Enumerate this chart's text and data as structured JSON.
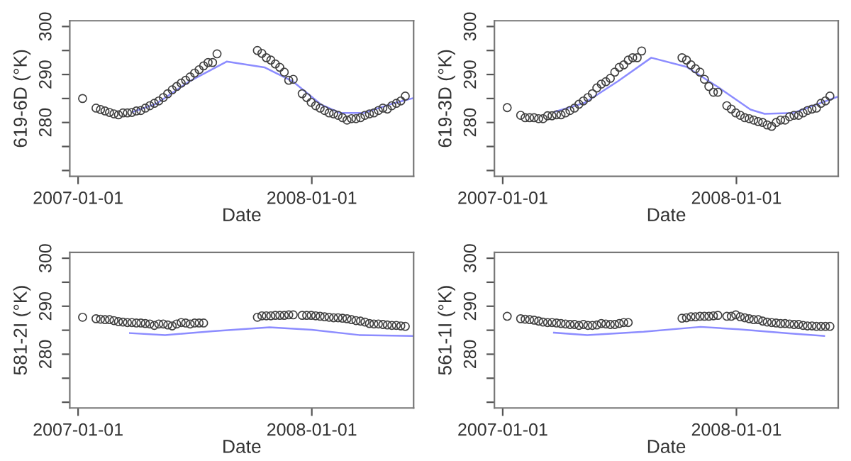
{
  "chart_data": [
    {
      "type": "scatter",
      "xlabel": "Date",
      "ylabel": "619-6D (°K)",
      "xlim": [
        "2006-12-19",
        "2008-06-08"
      ],
      "ylim": [
        268.8,
        301.2
      ],
      "xticks": [
        "2007-01-01",
        "2008-01-01"
      ],
      "yticks": [
        {
          "value": 270,
          "label": null
        },
        {
          "value": 275,
          "label": null
        },
        280,
        {
          "value": 285,
          "label": null
        },
        290,
        {
          "value": 295,
          "label": null
        },
        300
      ],
      "grid": false,
      "legend": false,
      "series": [
        {
          "type": "scatter",
          "marker": "circle",
          "color": "#404040",
          "x": [
            "2007-01-08",
            "2007-01-29",
            "2007-02-05",
            "2007-02-12",
            "2007-02-19",
            "2007-02-26",
            "2007-03-05",
            "2007-03-12",
            "2007-03-19",
            "2007-03-26",
            "2007-04-02",
            "2007-04-09",
            "2007-04-16",
            "2007-04-23",
            "2007-04-30",
            "2007-05-07",
            "2007-05-14",
            "2007-05-21",
            "2007-05-28",
            "2007-06-04",
            "2007-06-11",
            "2007-06-18",
            "2007-06-25",
            "2007-07-02",
            "2007-07-09",
            "2007-07-16",
            "2007-07-23",
            "2007-07-30",
            "2007-08-06",
            "2007-10-08",
            "2007-10-15",
            "2007-10-22",
            "2007-10-29",
            "2007-11-05",
            "2007-11-12",
            "2007-11-19",
            "2007-11-26",
            "2007-12-03",
            "2007-12-17",
            "2007-12-24",
            "2007-12-31",
            "2008-01-07",
            "2008-01-14",
            "2008-01-21",
            "2008-01-28",
            "2008-02-04",
            "2008-02-11",
            "2008-02-18",
            "2008-02-25",
            "2008-03-03",
            "2008-03-10",
            "2008-03-17",
            "2008-03-24",
            "2008-03-31",
            "2008-04-07",
            "2008-04-14",
            "2008-04-21",
            "2008-04-28",
            "2008-05-05",
            "2008-05-12",
            "2008-05-19",
            "2008-05-26"
          ],
          "values": [
            285.0,
            283.0,
            282.7,
            282.4,
            282.1,
            281.8,
            281.6,
            282.0,
            282.0,
            282.1,
            282.4,
            282.5,
            283.0,
            283.5,
            284.0,
            284.5,
            285.2,
            286.0,
            286.8,
            287.5,
            288.2,
            288.8,
            289.5,
            290.3,
            291.0,
            291.8,
            292.5,
            292.5,
            294.3,
            295.0,
            294.4,
            293.5,
            293.0,
            292.2,
            291.5,
            290.5,
            288.8,
            289.0,
            286.0,
            285.2,
            284.2,
            283.5,
            283.0,
            282.5,
            282.0,
            281.8,
            281.5,
            281.0,
            280.5,
            280.8,
            280.8,
            281.0,
            281.5,
            281.8,
            282.0,
            282.5,
            283.0,
            282.8,
            283.5,
            284.0,
            284.5,
            285.5
          ]
        },
        {
          "type": "line",
          "marker": "none",
          "color": "#8c8cff",
          "x": [
            "2007-03-27",
            "2007-05-03",
            "2007-06-23",
            "2007-08-21",
            "2007-10-19",
            "2007-12-03",
            "2008-01-16",
            "2008-02-14",
            "2008-03-22",
            "2008-05-05",
            "2008-06-08"
          ],
          "values": [
            282.2,
            283.9,
            288.5,
            292.7,
            291.5,
            288.5,
            283.7,
            282.0,
            282.0,
            283.9,
            285.1
          ]
        }
      ]
    },
    {
      "type": "scatter",
      "xlabel": "Date",
      "ylabel": "619-3D (°K)",
      "xlim": [
        "2006-12-19",
        "2008-06-08"
      ],
      "ylim": [
        268.8,
        301.2
      ],
      "xticks": [
        "2007-01-01",
        "2008-01-01"
      ],
      "yticks": [
        {
          "value": 270,
          "label": null
        },
        {
          "value": 275,
          "label": null
        },
        280,
        {
          "value": 285,
          "label": null
        },
        290,
        {
          "value": 295,
          "label": null
        },
        300
      ],
      "grid": false,
      "legend": false,
      "series": [
        {
          "type": "scatter",
          "marker": "circle",
          "color": "#404040",
          "x": [
            "2007-01-08",
            "2007-01-29",
            "2007-02-05",
            "2007-02-12",
            "2007-02-19",
            "2007-02-26",
            "2007-03-05",
            "2007-03-12",
            "2007-03-19",
            "2007-03-26",
            "2007-04-02",
            "2007-04-09",
            "2007-04-16",
            "2007-04-23",
            "2007-04-30",
            "2007-05-07",
            "2007-05-14",
            "2007-05-21",
            "2007-05-28",
            "2007-06-04",
            "2007-06-11",
            "2007-06-18",
            "2007-06-25",
            "2007-07-02",
            "2007-07-09",
            "2007-07-16",
            "2007-07-23",
            "2007-07-30",
            "2007-08-06",
            "2007-10-08",
            "2007-10-15",
            "2007-10-22",
            "2007-10-29",
            "2007-11-05",
            "2007-11-12",
            "2007-11-19",
            "2007-11-26",
            "2007-12-03",
            "2007-12-17",
            "2007-12-24",
            "2007-12-31",
            "2008-01-07",
            "2008-01-14",
            "2008-01-21",
            "2008-01-28",
            "2008-02-04",
            "2008-02-11",
            "2008-02-18",
            "2008-02-25",
            "2008-03-03",
            "2008-03-10",
            "2008-03-17",
            "2008-03-24",
            "2008-03-31",
            "2008-04-07",
            "2008-04-14",
            "2008-04-21",
            "2008-04-28",
            "2008-05-05",
            "2008-05-12",
            "2008-05-19",
            "2008-05-26"
          ],
          "values": [
            283.1,
            281.5,
            281.0,
            281.0,
            281.0,
            280.8,
            280.8,
            281.4,
            281.4,
            281.6,
            281.6,
            282.0,
            282.5,
            283.0,
            283.8,
            284.5,
            285.2,
            286.0,
            287.2,
            288.0,
            288.5,
            289.2,
            290.5,
            291.5,
            292.0,
            293.0,
            293.5,
            293.5,
            294.9,
            293.5,
            293.0,
            292.0,
            291.2,
            290.5,
            289.0,
            287.5,
            286.3,
            286.3,
            283.5,
            282.8,
            282.0,
            281.5,
            281.0,
            280.8,
            280.5,
            280.2,
            280.0,
            279.5,
            279.2,
            280.0,
            280.5,
            280.5,
            281.2,
            281.5,
            281.5,
            282.0,
            282.5,
            282.8,
            283.0,
            284.0,
            284.5,
            285.5
          ]
        },
        {
          "type": "line",
          "marker": "none",
          "color": "#8c8cff",
          "x": [
            "2007-03-22",
            "2007-05-09",
            "2007-06-30",
            "2007-08-21",
            "2007-10-15",
            "2007-12-02",
            "2008-01-23",
            "2008-02-14",
            "2008-03-30",
            "2008-06-08"
          ],
          "values": [
            282.2,
            284.1,
            288.6,
            293.5,
            291.6,
            287.5,
            282.7,
            281.8,
            282.0,
            285.4
          ]
        }
      ]
    },
    {
      "type": "scatter",
      "xlabel": "Date",
      "ylabel": "581-2I (°K)",
      "xlim": [
        "2006-12-19",
        "2008-06-08"
      ],
      "ylim": [
        268.8,
        301.2
      ],
      "xticks": [
        "2007-01-01",
        "2008-01-01"
      ],
      "yticks": [
        {
          "value": 270,
          "label": null
        },
        {
          "value": 275,
          "label": null
        },
        280,
        {
          "value": 285,
          "label": null
        },
        290,
        {
          "value": 295,
          "label": null
        },
        300
      ],
      "grid": false,
      "legend": false,
      "series": [
        {
          "type": "scatter",
          "marker": "circle",
          "color": "#404040",
          "x": [
            "2007-01-08",
            "2007-01-29",
            "2007-02-05",
            "2007-02-12",
            "2007-02-19",
            "2007-02-26",
            "2007-03-05",
            "2007-03-12",
            "2007-03-19",
            "2007-03-26",
            "2007-04-02",
            "2007-04-09",
            "2007-04-16",
            "2007-04-23",
            "2007-04-30",
            "2007-05-07",
            "2007-05-14",
            "2007-05-21",
            "2007-05-28",
            "2007-06-04",
            "2007-06-11",
            "2007-06-18",
            "2007-06-25",
            "2007-07-02",
            "2007-07-09",
            "2007-07-16",
            "2007-10-08",
            "2007-10-15",
            "2007-10-22",
            "2007-10-29",
            "2007-11-05",
            "2007-11-12",
            "2007-11-19",
            "2007-11-26",
            "2007-12-03",
            "2007-12-17",
            "2007-12-24",
            "2007-12-31",
            "2008-01-07",
            "2008-01-14",
            "2008-01-21",
            "2008-01-28",
            "2008-02-04",
            "2008-02-11",
            "2008-02-18",
            "2008-02-25",
            "2008-03-03",
            "2008-03-10",
            "2008-03-17",
            "2008-03-24",
            "2008-03-31",
            "2008-04-07",
            "2008-04-14",
            "2008-04-21",
            "2008-04-28",
            "2008-05-05",
            "2008-05-12",
            "2008-05-19",
            "2008-05-26"
          ],
          "values": [
            287.7,
            287.4,
            287.3,
            287.2,
            287.2,
            287.0,
            286.8,
            286.7,
            286.6,
            286.6,
            286.5,
            286.5,
            286.4,
            286.3,
            286.0,
            286.3,
            286.3,
            286.1,
            285.9,
            286.3,
            286.6,
            286.5,
            286.3,
            286.5,
            286.5,
            286.5,
            287.7,
            288.0,
            288.0,
            288.0,
            288.1,
            288.1,
            288.1,
            288.2,
            288.2,
            288.1,
            288.1,
            288.1,
            288.0,
            287.9,
            287.8,
            287.7,
            287.6,
            287.6,
            287.5,
            287.4,
            287.2,
            287.0,
            286.9,
            286.7,
            286.4,
            286.3,
            286.3,
            286.2,
            286.1,
            286.0,
            286.0,
            285.9,
            285.8
          ]
        },
        {
          "type": "line",
          "marker": "none",
          "color": "#8c8cff",
          "x": [
            "2007-03-23",
            "2007-05-17",
            "2007-07-30",
            "2007-10-27",
            "2008-01-01",
            "2008-03-15",
            "2008-06-08"
          ],
          "values": [
            284.4,
            284.0,
            284.8,
            285.6,
            285.1,
            284.0,
            283.8
          ]
        }
      ]
    },
    {
      "type": "scatter",
      "xlabel": "Date",
      "ylabel": "561-1I (°K)",
      "xlim": [
        "2006-12-19",
        "2008-06-08"
      ],
      "ylim": [
        268.8,
        301.2
      ],
      "xticks": [
        "2007-01-01",
        "2008-01-01"
      ],
      "yticks": [
        {
          "value": 270,
          "label": null
        },
        {
          "value": 275,
          "label": null
        },
        280,
        {
          "value": 285,
          "label": null
        },
        290,
        {
          "value": 295,
          "label": null
        },
        300
      ],
      "grid": false,
      "legend": false,
      "series": [
        {
          "type": "scatter",
          "marker": "circle",
          "color": "#404040",
          "x": [
            "2007-01-08",
            "2007-01-29",
            "2007-02-05",
            "2007-02-12",
            "2007-02-19",
            "2007-02-26",
            "2007-03-05",
            "2007-03-12",
            "2007-03-19",
            "2007-03-26",
            "2007-04-02",
            "2007-04-09",
            "2007-04-16",
            "2007-04-23",
            "2007-04-30",
            "2007-05-07",
            "2007-05-14",
            "2007-05-21",
            "2007-05-28",
            "2007-06-04",
            "2007-06-11",
            "2007-06-18",
            "2007-06-25",
            "2007-07-02",
            "2007-07-09",
            "2007-07-16",
            "2007-10-08",
            "2007-10-15",
            "2007-10-22",
            "2007-10-29",
            "2007-11-05",
            "2007-11-12",
            "2007-11-19",
            "2007-11-26",
            "2007-12-03",
            "2007-12-17",
            "2007-12-24",
            "2007-12-31",
            "2008-01-07",
            "2008-01-14",
            "2008-01-21",
            "2008-01-28",
            "2008-02-04",
            "2008-02-11",
            "2008-02-18",
            "2008-02-25",
            "2008-03-03",
            "2008-03-10",
            "2008-03-17",
            "2008-03-24",
            "2008-03-31",
            "2008-04-07",
            "2008-04-14",
            "2008-04-21",
            "2008-04-28",
            "2008-05-05",
            "2008-05-12",
            "2008-05-19",
            "2008-05-26"
          ],
          "values": [
            287.9,
            287.4,
            287.3,
            287.2,
            287.1,
            286.9,
            286.7,
            286.6,
            286.6,
            286.5,
            286.4,
            286.3,
            286.2,
            286.2,
            286.0,
            286.2,
            286.0,
            286.0,
            286.1,
            286.4,
            286.3,
            286.2,
            286.2,
            286.4,
            286.6,
            286.6,
            287.5,
            287.6,
            287.8,
            287.8,
            287.9,
            287.9,
            287.9,
            288.0,
            288.1,
            287.9,
            287.9,
            288.2,
            287.8,
            287.6,
            287.4,
            287.2,
            287.2,
            286.9,
            286.7,
            286.6,
            286.5,
            286.4,
            286.4,
            286.3,
            286.2,
            286.2,
            286.0,
            285.9,
            285.9,
            285.8,
            285.8,
            285.8,
            285.8
          ]
        },
        {
          "type": "line",
          "marker": "none",
          "color": "#8c8cff",
          "x": [
            "2007-03-22",
            "2007-05-13",
            "2007-08-09",
            "2007-11-06",
            "2008-01-04",
            "2008-03-26",
            "2008-05-17"
          ],
          "values": [
            284.5,
            284.0,
            284.7,
            285.7,
            285.2,
            284.3,
            283.8
          ]
        }
      ]
    }
  ]
}
